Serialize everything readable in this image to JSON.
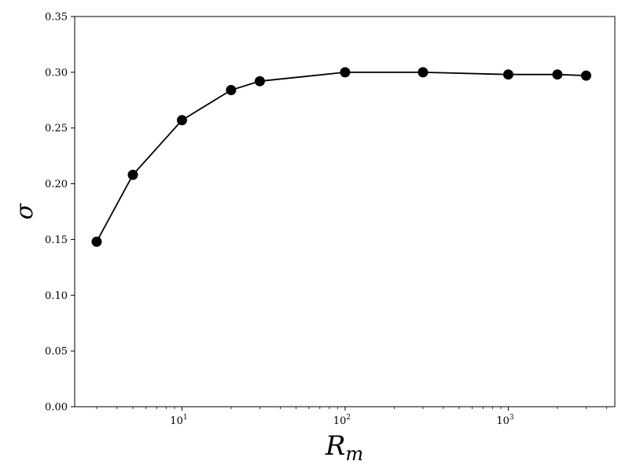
{
  "chart_data": {
    "type": "line",
    "title": "",
    "xlabel": "R",
    "xlabel_subscript": "m",
    "ylabel": "σ",
    "x_scale": "log",
    "xlim": [
      2.2,
      4500
    ],
    "ylim": [
      0,
      0.35
    ],
    "grid": false,
    "legend": "none",
    "x_ticks": [
      {
        "value": 10,
        "base": "10",
        "exp": "1"
      },
      {
        "value": 100,
        "base": "10",
        "exp": "2"
      },
      {
        "value": 1000,
        "base": "10",
        "exp": "3"
      }
    ],
    "y_ticks": [
      {
        "value": 0.0,
        "label": "0.00"
      },
      {
        "value": 0.05,
        "label": "0.05"
      },
      {
        "value": 0.1,
        "label": "0.10"
      },
      {
        "value": 0.15,
        "label": "0.15"
      },
      {
        "value": 0.2,
        "label": "0.20"
      },
      {
        "value": 0.25,
        "label": "0.25"
      },
      {
        "value": 0.3,
        "label": "0.30"
      },
      {
        "value": 0.35,
        "label": "0.35"
      }
    ],
    "series": [
      {
        "color": "#000000",
        "marker": "circle",
        "x": [
          3,
          5,
          10,
          20,
          30,
          100,
          300,
          1000,
          2000,
          3000
        ],
        "y": [
          0.148,
          0.208,
          0.257,
          0.284,
          0.292,
          0.3,
          0.3,
          0.298,
          0.298,
          0.297
        ]
      }
    ]
  }
}
